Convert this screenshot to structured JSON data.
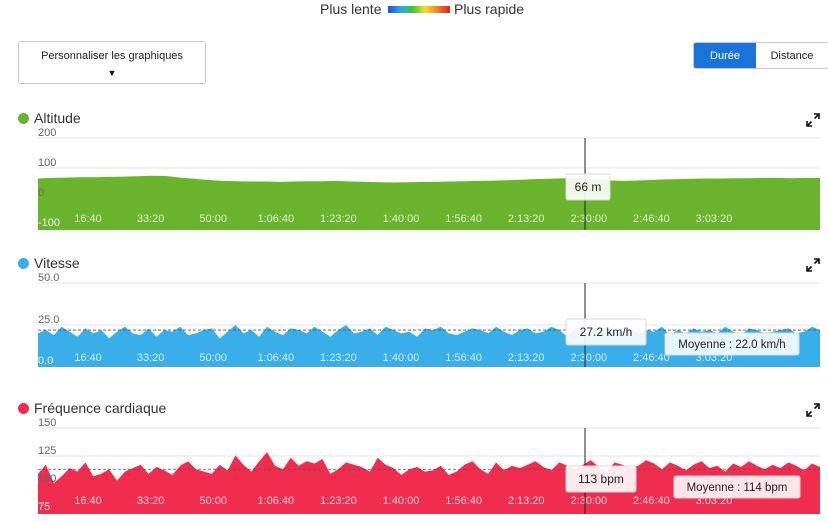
{
  "legend": {
    "slow_label": "Plus lente",
    "fast_label": "Plus rapide"
  },
  "toolbar": {
    "customize_label": "Personnaliser les graphiques",
    "toggle": {
      "options": [
        "Durée",
        "Distance"
      ],
      "selected": "Durée"
    }
  },
  "x_ticks": [
    "16:40",
    "33:20",
    "50:00",
    "1:06:40",
    "1:23:20",
    "1:40:00",
    "1:56:40",
    "2:13:20",
    "2:30:00",
    "2:46:40",
    "3:03:20"
  ],
  "colors": {
    "altitude": "#6ab42d",
    "speed": "#3aaee8",
    "heart": "#f02c4f",
    "active": "#1a73d9"
  },
  "charts": [
    {
      "id": "altitude",
      "title": "Altitude",
      "dot_color": "#6ab42d",
      "expand_icon": "expand-icon",
      "y_ticks": [
        "200",
        "100",
        "0",
        "-100"
      ],
      "tooltip": "66 m",
      "chart_data": {
        "type": "area",
        "xlabel": "",
        "ylabel": "",
        "ylim": [
          -100,
          200
        ],
        "x_range_s": [
          0,
          11800
        ],
        "values": [
          68,
          70,
          71,
          72,
          72,
          73,
          74,
          75,
          77,
          76,
          71,
          67,
          63,
          60,
          59,
          58,
          58,
          57,
          58,
          59,
          59,
          60,
          58,
          57,
          56,
          55,
          56,
          57,
          57,
          58,
          59,
          60,
          61,
          62,
          64,
          66,
          67,
          69,
          70,
          66,
          62,
          60,
          61,
          63,
          65,
          66,
          67,
          68,
          68,
          69,
          69,
          70,
          70,
          69,
          70,
          70
        ]
      }
    },
    {
      "id": "speed",
      "title": "Vitesse",
      "dot_color": "#3aaee8",
      "expand_icon": "expand-icon",
      "y_ticks": [
        "50.0",
        "25.0",
        "0.0"
      ],
      "tooltip": "27.2 km/h",
      "average_label": "Moyenne : 22.0 km/h",
      "chart_data": {
        "type": "area",
        "xlabel": "",
        "ylabel": "",
        "ylim": [
          0,
          50
        ],
        "average": 22.0,
        "x_range_s": [
          0,
          11800
        ],
        "values": [
          20,
          22,
          19,
          24,
          21,
          18,
          23,
          20,
          22,
          17,
          21,
          24,
          20,
          19,
          23,
          18,
          22,
          21,
          24,
          19,
          20,
          22,
          23,
          17,
          21,
          25,
          20,
          22,
          18,
          24,
          21,
          19,
          23,
          22,
          20,
          24,
          21,
          18,
          22,
          25,
          20,
          21,
          23,
          19,
          24,
          22,
          20,
          21,
          18,
          23,
          22,
          24,
          20,
          19,
          21,
          23,
          22,
          20,
          24,
          21,
          19,
          22,
          23,
          20,
          21,
          24,
          22,
          18,
          23,
          21,
          20,
          22,
          24,
          19,
          21,
          23,
          20,
          22,
          21,
          24,
          19,
          22,
          20,
          23,
          21,
          22,
          20,
          24,
          21,
          19,
          23,
          22,
          20,
          21,
          22,
          23,
          20,
          21,
          24,
          22
        ]
      }
    },
    {
      "id": "heart",
      "title": "Fréquence cardiaque",
      "dot_color": "#f02c4f",
      "expand_icon": "expand-icon",
      "y_ticks": [
        "150",
        "125",
        "100",
        "75"
      ],
      "tooltip": "113 bpm",
      "average_label": "Moyenne : 114 bpm",
      "chart_data": {
        "type": "area",
        "xlabel": "",
        "ylabel": "",
        "ylim": [
          75,
          150
        ],
        "average": 114,
        "x_range_s": [
          0,
          11800
        ],
        "values": [
          110,
          118,
          102,
          108,
          115,
          112,
          120,
          108,
          110,
          114,
          104,
          112,
          115,
          118,
          110,
          116,
          113,
          109,
          117,
          121,
          114,
          112,
          110,
          118,
          113,
          126,
          118,
          112,
          121,
          129,
          117,
          114,
          124,
          117,
          121,
          119,
          123,
          110,
          114,
          120,
          118,
          116,
          112,
          124,
          118,
          115,
          109,
          114,
          116,
          112,
          113,
          117,
          109,
          112,
          118,
          121,
          114,
          110,
          120,
          113,
          117,
          115,
          118,
          121,
          116,
          113,
          120,
          117,
          114,
          118,
          122,
          116,
          112,
          120,
          118,
          115,
          117,
          122,
          119,
          114,
          120,
          117,
          113,
          118,
          121,
          115,
          117,
          112,
          119,
          116,
          121,
          117,
          114,
          118,
          115,
          120,
          117,
          113,
          119,
          116
        ]
      }
    }
  ]
}
